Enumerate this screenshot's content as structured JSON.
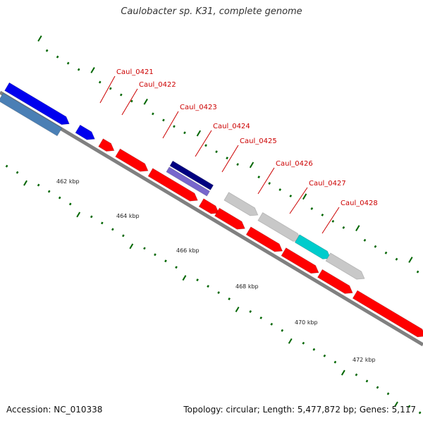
{
  "title": "Caulobacter sp. K31, complete genome",
  "footer": {
    "accession": "Accession: NC_010338",
    "stats": "Topology: circular; Length: 5,477,872 bp; Genes: 5,117"
  },
  "scale_labels": [
    "462 kbp",
    "464 kbp",
    "466 kbp",
    "468 kbp",
    "470 kbp",
    "472 kbp"
  ],
  "gene_labels": [
    "Caul_0421",
    "Caul_0422",
    "Caul_0423",
    "Caul_0424",
    "Caul_0425",
    "Caul_0426",
    "Caul_0427",
    "Caul_0428"
  ],
  "colors": {
    "backbone": "#808080",
    "label_red": "#cc0000",
    "tick_green": "#006600",
    "cds_red": "#ff0000",
    "cds_blue": "#0000ee",
    "cds_steel": "#4a7fb5",
    "cds_navy": "#000080",
    "cds_purple": "#7766cc",
    "cds_gray": "#c8c8c8",
    "cds_cyan": "#00cccc"
  }
}
